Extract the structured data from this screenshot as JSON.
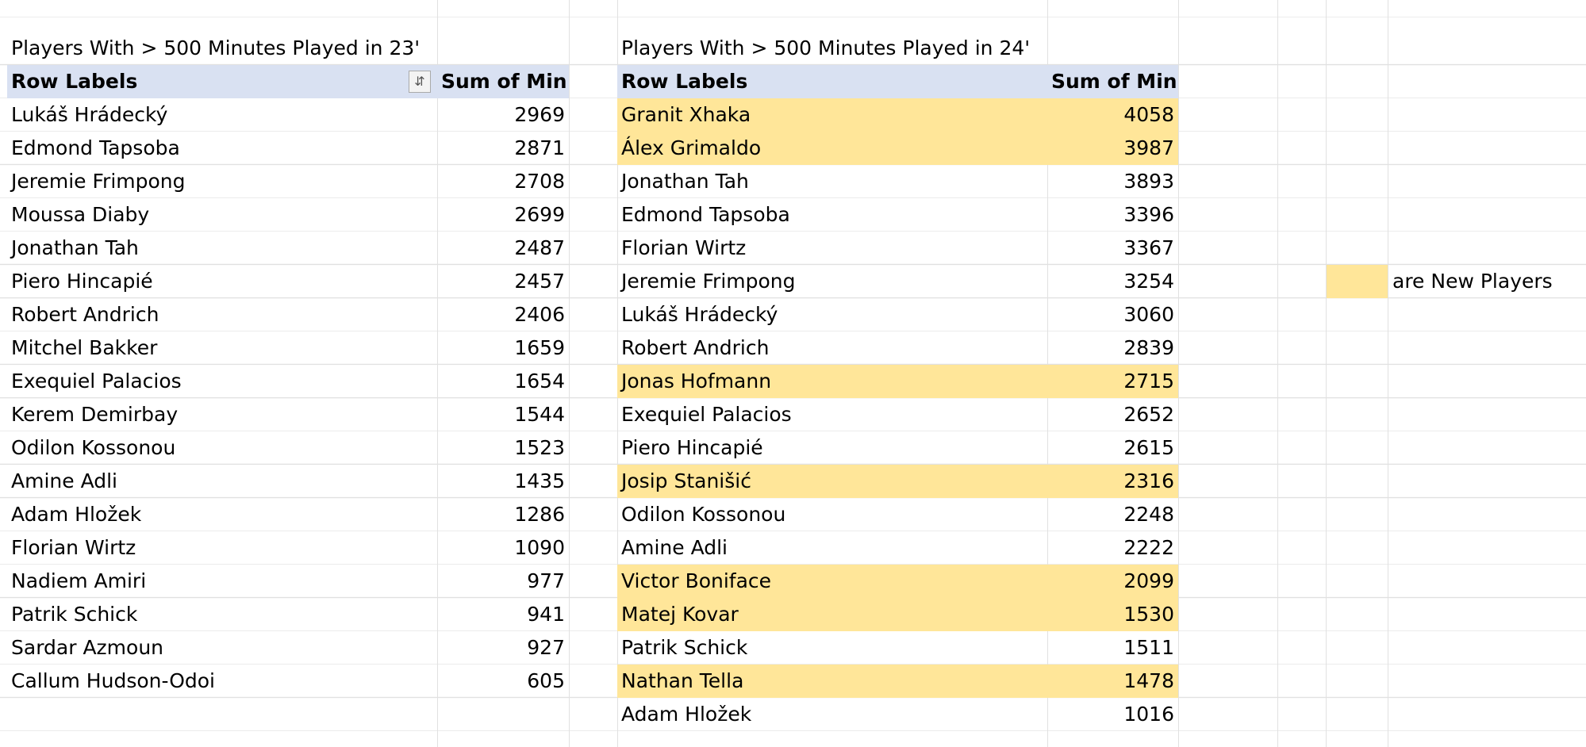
{
  "highlight_color": "#ffe699",
  "tables": [
    {
      "title": "Players With > 500 Minutes Played in 23'",
      "headers": [
        "Row Labels",
        "Sum of Min"
      ],
      "rows": [
        {
          "name": "Lukáš Hrádecký",
          "minutes": 2969
        },
        {
          "name": "Edmond Tapsoba",
          "minutes": 2871
        },
        {
          "name": "Jeremie Frimpong",
          "minutes": 2708
        },
        {
          "name": "Moussa Diaby",
          "minutes": 2699
        },
        {
          "name": "Jonathan Tah",
          "minutes": 2487
        },
        {
          "name": "Piero Hincapié",
          "minutes": 2457
        },
        {
          "name": "Robert Andrich",
          "minutes": 2406
        },
        {
          "name": "Mitchel Bakker",
          "minutes": 1659
        },
        {
          "name": "Exequiel Palacios",
          "minutes": 1654
        },
        {
          "name": "Kerem Demirbay",
          "minutes": 1544
        },
        {
          "name": "Odilon Kossonou",
          "minutes": 1523
        },
        {
          "name": "Amine Adli",
          "minutes": 1435
        },
        {
          "name": "Adam Hložek",
          "minutes": 1286
        },
        {
          "name": "Florian Wirtz",
          "minutes": 1090
        },
        {
          "name": "Nadiem Amiri",
          "minutes": 977
        },
        {
          "name": "Patrik Schick",
          "minutes": 941
        },
        {
          "name": "Sardar Azmoun",
          "minutes": 927
        },
        {
          "name": "Callum Hudson-Odoi",
          "minutes": 605
        }
      ]
    },
    {
      "title": "Players With > 500 Minutes Played in 24'",
      "headers": [
        "Row Labels",
        "Sum of Min"
      ],
      "rows": [
        {
          "name": "Granit Xhaka",
          "minutes": 4058,
          "new": true
        },
        {
          "name": "Álex Grimaldo",
          "minutes": 3987,
          "new": true
        },
        {
          "name": "Jonathan Tah",
          "minutes": 3893
        },
        {
          "name": "Edmond Tapsoba",
          "minutes": 3396
        },
        {
          "name": "Florian Wirtz",
          "minutes": 3367
        },
        {
          "name": "Jeremie Frimpong",
          "minutes": 3254
        },
        {
          "name": "Lukáš Hrádecký",
          "minutes": 3060
        },
        {
          "name": "Robert Andrich",
          "minutes": 2839
        },
        {
          "name": "Jonas Hofmann",
          "minutes": 2715,
          "new": true
        },
        {
          "name": "Exequiel Palacios",
          "minutes": 2652
        },
        {
          "name": "Piero Hincapié",
          "minutes": 2615
        },
        {
          "name": "Josip Stanišić",
          "minutes": 2316,
          "new": true
        },
        {
          "name": "Odilon Kossonou",
          "minutes": 2248
        },
        {
          "name": "Amine Adli",
          "minutes": 2222
        },
        {
          "name": "Victor Boniface",
          "minutes": 2099,
          "new": true
        },
        {
          "name": "Matej Kovar",
          "minutes": 1530,
          "new": true
        },
        {
          "name": "Patrik Schick",
          "minutes": 1511
        },
        {
          "name": "Nathan Tella",
          "minutes": 1478,
          "new": true
        },
        {
          "name": "Adam Hložek",
          "minutes": 1016
        }
      ]
    }
  ],
  "legend": {
    "label": "are New Players"
  }
}
